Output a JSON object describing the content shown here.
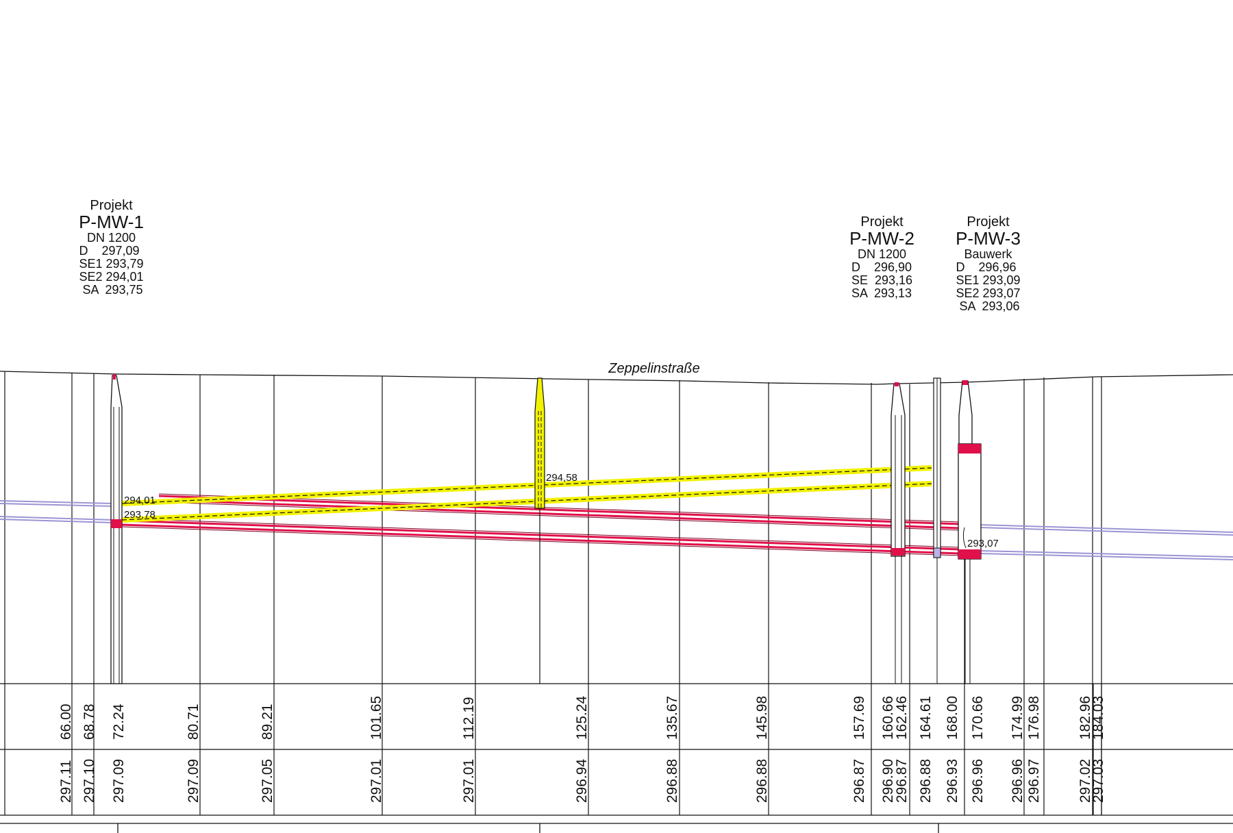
{
  "street_name": "Zeppelinstraße",
  "manholes": [
    {
      "title": "Projekt",
      "name": "P-MW-1",
      "subtitle": "DN 1200",
      "rows": [
        {
          "key": "D",
          "val": "297,09"
        },
        {
          "key": "SE1",
          "val": "293,79"
        },
        {
          "key": "SE2",
          "val": "294,01"
        },
        {
          "key": "SA",
          "val": "293,75"
        }
      ]
    },
    {
      "title": "Projekt",
      "name": "P-MW-2",
      "subtitle": "DN 1200",
      "rows": [
        {
          "key": "D",
          "val": "296,90"
        },
        {
          "key": "SE",
          "val": "293,16"
        },
        {
          "key": "SA",
          "val": "293,13"
        }
      ]
    },
    {
      "title": "Projekt",
      "name": "P-MW-3",
      "subtitle": "Bauwerk",
      "rows": [
        {
          "key": "D",
          "val": "296,96"
        },
        {
          "key": "SE1",
          "val": "293,09"
        },
        {
          "key": "SE2",
          "val": "293,07"
        },
        {
          "key": "SA",
          "val": "293,06"
        }
      ]
    }
  ],
  "elevation_labels": [
    "294,01",
    "293,78",
    "294,58",
    "293,07"
  ],
  "stations": [
    {
      "station": "66.00",
      "ground": "297.11"
    },
    {
      "station": "68.78",
      "ground": "297.10"
    },
    {
      "station": "72.24",
      "ground": "297.09"
    },
    {
      "station": "80.71",
      "ground": "297.09"
    },
    {
      "station": "89.21",
      "ground": "297.05"
    },
    {
      "station": "101.65",
      "ground": "297.01"
    },
    {
      "station": "112.19",
      "ground": "297.01"
    },
    {
      "station": "125.24",
      "ground": "296.94"
    },
    {
      "station": "135.67",
      "ground": "296.88"
    },
    {
      "station": "145.98",
      "ground": "296.88"
    },
    {
      "station": "157.69",
      "ground": "296.87"
    },
    {
      "station": "160.66",
      "ground": "296.90"
    },
    {
      "station": "162.46",
      "ground": "296.87"
    },
    {
      "station": "164.61",
      "ground": "296.88"
    },
    {
      "station": "168.00",
      "ground": "296.93"
    },
    {
      "station": "170.66",
      "ground": "296.96"
    },
    {
      "station": "174.99",
      "ground": "296.96"
    },
    {
      "station": "176.98",
      "ground": "296.97"
    },
    {
      "station": "182.96",
      "ground": "297.02"
    },
    {
      "station": "184.03",
      "ground": "297.03"
    }
  ],
  "colors": {
    "red_pipe": "#e0104a",
    "yellow_pipe": "#f2f200",
    "blue_pipe": "#9a94d4",
    "line": "#111111"
  }
}
